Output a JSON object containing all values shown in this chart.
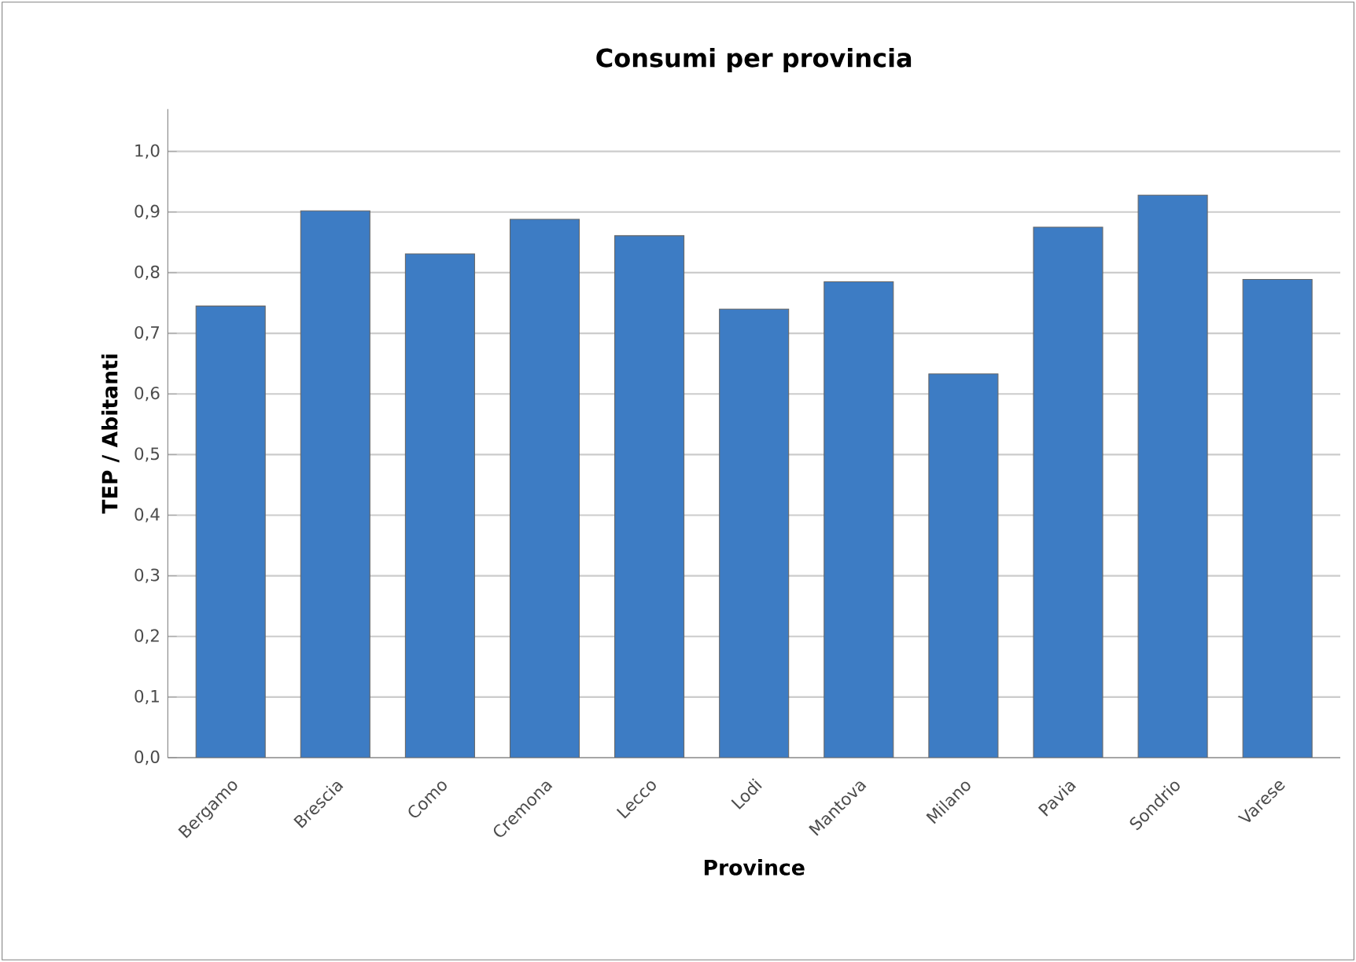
{
  "chart_data": {
    "type": "bar",
    "title": "Consumi per provincia",
    "xlabel": "Province",
    "ylabel": "TEP / Abitanti",
    "categories": [
      "Bergamo",
      "Brescia",
      "Como",
      "Cremona",
      "Lecco",
      "Lodi",
      "Mantova",
      "Milano",
      "Pavia",
      "Sondrio",
      "Varese"
    ],
    "values": [
      0.745,
      0.902,
      0.831,
      0.888,
      0.861,
      0.74,
      0.785,
      0.633,
      0.875,
      0.928,
      0.789
    ],
    "color": "#3d7cc4",
    "ylim": [
      0,
      1.07
    ],
    "yticks": [
      {
        "value": 0,
        "label": "0,0"
      },
      {
        "value": 0.1,
        "label": "0,1"
      },
      {
        "value": 0.2,
        "label": "0,2"
      },
      {
        "value": 0.3,
        "label": "0,3"
      },
      {
        "value": 0.4,
        "label": "0,4"
      },
      {
        "value": 0.5,
        "label": "0,5"
      },
      {
        "value": 0.6,
        "label": "0,6"
      },
      {
        "value": 0.7,
        "label": "0,7"
      },
      {
        "value": 0.8,
        "label": "0,8"
      },
      {
        "value": 0.9,
        "label": "0,9"
      },
      {
        "value": 1.0,
        "label": "1,0"
      }
    ],
    "grid": "y"
  }
}
